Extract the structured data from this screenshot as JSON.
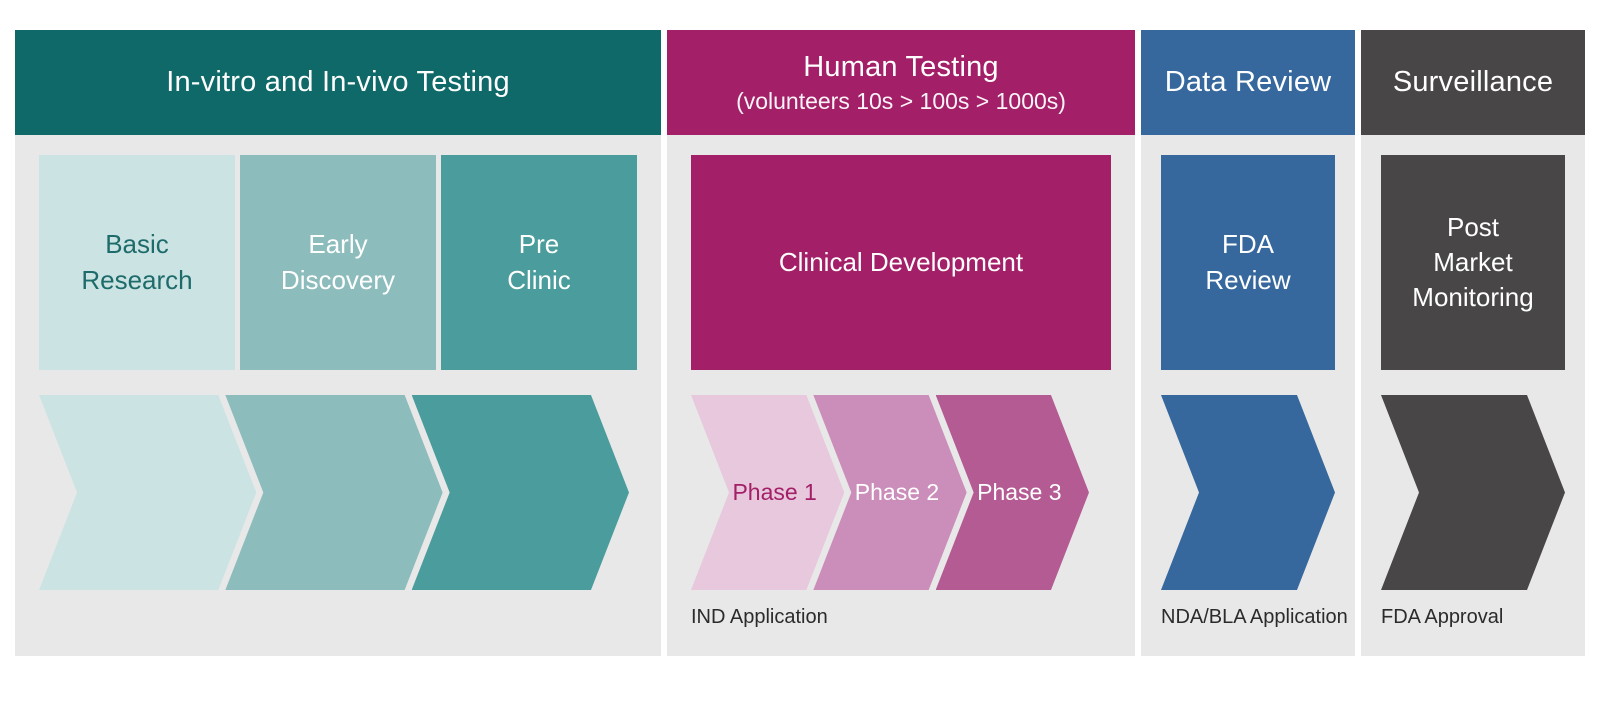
{
  "canvas": {
    "page_bg": "#ffffff",
    "panel_bg": "#e9e8e8",
    "footer_text_color": "#2b2b2b"
  },
  "columns": [
    {
      "name": "in-vitro-in-vivo-testing",
      "header": {
        "title": "In-vitro and In-vivo Testing",
        "subtitle": "",
        "bg": "#0e6968",
        "fg": "#ffffff"
      },
      "boxes": [
        {
          "label": "Basic\nResearch",
          "bg": "#cce3e3",
          "fg": "#1e6b6b"
        },
        {
          "label": "Early\nDiscovery",
          "bg": "#8cbcbc",
          "fg": "#ffffff"
        },
        {
          "label": "Pre\nClinic",
          "bg": "#4b9c9c",
          "fg": "#ffffff"
        }
      ],
      "chevrons": [
        {
          "label": "",
          "bg": "#cce3e3",
          "fg": "#1e6b6b"
        },
        {
          "label": "",
          "bg": "#8cbcbc",
          "fg": "#ffffff"
        },
        {
          "label": "",
          "bg": "#4b9c9c",
          "fg": "#ffffff"
        }
      ],
      "footer": ""
    },
    {
      "name": "human-testing",
      "header": {
        "title": "Human Testing",
        "subtitle": "(volunteers 10s > 100s > 1000s)",
        "bg": "#a32068",
        "fg": "#ffffff"
      },
      "boxes": [
        {
          "label": "Clinical Development",
          "bg": "#a32068",
          "fg": "#ffffff"
        }
      ],
      "chevrons": [
        {
          "label": "Phase 1",
          "bg": "#e7c8dc",
          "fg": "#a32068"
        },
        {
          "label": "Phase 2",
          "bg": "#cb8db9",
          "fg": "#ffffff"
        },
        {
          "label": "Phase 3",
          "bg": "#b45b94",
          "fg": "#ffffff"
        }
      ],
      "footer": "IND Application"
    },
    {
      "name": "data-review",
      "header": {
        "title": "Data Review",
        "subtitle": "",
        "bg": "#36689d",
        "fg": "#ffffff"
      },
      "boxes": [
        {
          "label": "FDA\nReview",
          "bg": "#36689d",
          "fg": "#ffffff"
        }
      ],
      "chevrons": [
        {
          "label": "",
          "bg": "#36689d",
          "fg": "#ffffff"
        }
      ],
      "footer": "NDA/BLA Application"
    },
    {
      "name": "surveillance",
      "header": {
        "title": "Surveillance",
        "subtitle": "",
        "bg": "#484646",
        "fg": "#ffffff"
      },
      "boxes": [
        {
          "label": "Post\nMarket\nMonitoring",
          "bg": "#484646",
          "fg": "#ffffff"
        }
      ],
      "chevrons": [
        {
          "label": "",
          "bg": "#484646",
          "fg": "#ffffff"
        }
      ],
      "footer": "FDA Approval"
    }
  ]
}
